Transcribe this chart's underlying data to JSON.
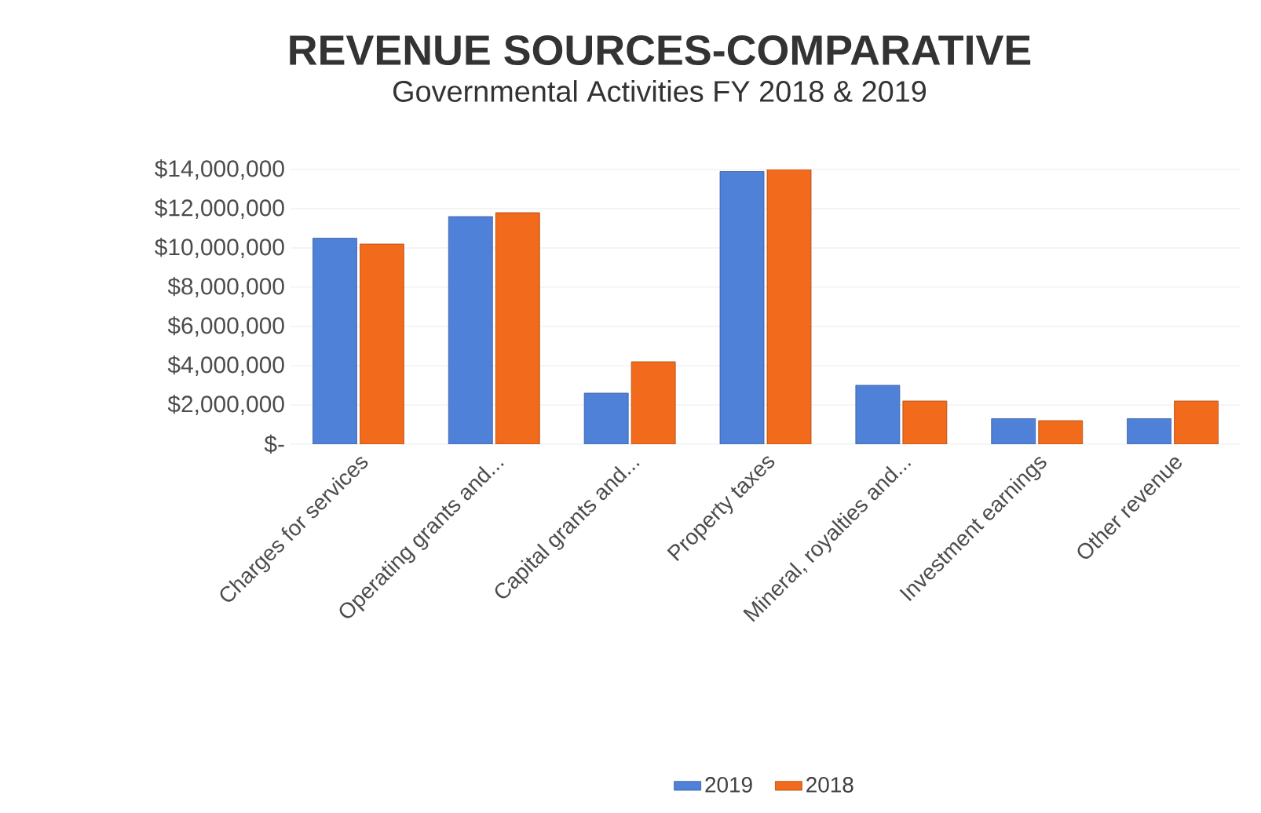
{
  "chart_data": {
    "type": "bar",
    "title": "REVENUE SOURCES-COMPARATIVE",
    "subtitle": "Governmental Activities FY 2018 & 2019",
    "categories": [
      "Charges for services",
      "Operating grants and...",
      "Capital grants and...",
      "Property taxes",
      "Mineral, royalties and...",
      "Investment earnings",
      "Other revenue"
    ],
    "series": [
      {
        "name": "2019",
        "color": "#4f81d9",
        "values": [
          10500000,
          11600000,
          2600000,
          13900000,
          3000000,
          1300000,
          1300000
        ]
      },
      {
        "name": "2018",
        "color": "#f26a1b",
        "values": [
          10200000,
          11800000,
          4200000,
          14000000,
          2200000,
          1200000,
          2200000
        ]
      }
    ],
    "ylim": [
      0,
      14000000
    ],
    "yticks": [
      {
        "value": 0,
        "label": "$-"
      },
      {
        "value": 2000000,
        "label": "$2,000,000"
      },
      {
        "value": 4000000,
        "label": "$4,000,000"
      },
      {
        "value": 6000000,
        "label": "$6,000,000"
      },
      {
        "value": 8000000,
        "label": "$8,000,000"
      },
      {
        "value": 10000000,
        "label": "$10,000,000"
      },
      {
        "value": 12000000,
        "label": "$12,000,000"
      },
      {
        "value": 14000000,
        "label": "$14,000,000"
      }
    ],
    "grid": "y",
    "legend": "bottom"
  }
}
